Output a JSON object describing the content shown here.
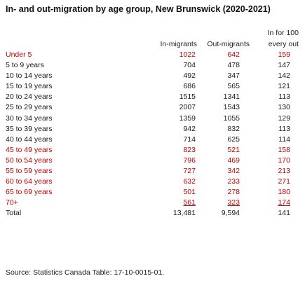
{
  "title": "In- and out-migration by age group, New Brunswick (2020-2021)",
  "headers": {
    "ratio_top": "In for 100",
    "in": "In-migrants",
    "out": "Out-migrants",
    "ratio_bottom": "every out"
  },
  "rows": [
    {
      "label": "Under 5",
      "in": "1022",
      "out": "642",
      "ratio": "159",
      "color": "red"
    },
    {
      "label": "5 to 9 years",
      "in": "704",
      "out": "478",
      "ratio": "147",
      "color": "black"
    },
    {
      "label": "10 to 14 years",
      "in": "492",
      "out": "347",
      "ratio": "142",
      "color": "black"
    },
    {
      "label": "15 to 19 years",
      "in": "686",
      "out": "565",
      "ratio": "121",
      "color": "black"
    },
    {
      "label": "20 to 24 years",
      "in": "1515",
      "out": "1341",
      "ratio": "113",
      "color": "black"
    },
    {
      "label": "25 to 29 years",
      "in": "2007",
      "out": "1543",
      "ratio": "130",
      "color": "black"
    },
    {
      "label": "30 to 34 years",
      "in": "1359",
      "out": "1055",
      "ratio": "129",
      "color": "black"
    },
    {
      "label": "35 to 39 years",
      "in": "942",
      "out": "832",
      "ratio": "113",
      "color": "black"
    },
    {
      "label": "40 to 44 years",
      "in": "714",
      "out": "625",
      "ratio": "114",
      "color": "black"
    },
    {
      "label": "45 to 49 years",
      "in": "823",
      "out": "521",
      "ratio": "158",
      "color": "red"
    },
    {
      "label": "50 to 54 years",
      "in": "796",
      "out": "469",
      "ratio": "170",
      "color": "red"
    },
    {
      "label": "55 to 59 years",
      "in": "727",
      "out": "342",
      "ratio": "213",
      "color": "red"
    },
    {
      "label": "60 to 64 years",
      "in": "632",
      "out": "233",
      "ratio": "271",
      "color": "red"
    },
    {
      "label": "65 to 69 years",
      "in": "501",
      "out": "278",
      "ratio": "180",
      "color": "red"
    },
    {
      "label": "70+",
      "in": "561",
      "out": "323",
      "ratio": "174",
      "color": "red",
      "underline": true
    }
  ],
  "total": {
    "label": "Total",
    "in": "13,481",
    "out": "9,594",
    "ratio": "141"
  },
  "source": "Source: Statistics Canada Table: 17-10-0015-01.",
  "colors": {
    "highlight": "#c00000",
    "text": "#1a1a1a"
  }
}
